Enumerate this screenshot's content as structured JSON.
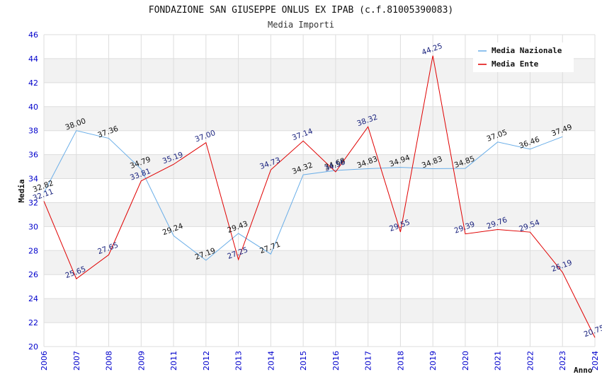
{
  "chart_data": {
    "type": "line",
    "title": "FONDAZIONE SAN GIUSEPPE ONLUS EX IPAB (c.f.81005390083)",
    "subtitle": "Media Importi",
    "xlabel": "Anno",
    "ylabel": "Media",
    "ylim": [
      20,
      46
    ],
    "yticks": [
      "20",
      "22",
      "24",
      "26",
      "28",
      "30",
      "32",
      "34",
      "36",
      "38",
      "40",
      "42",
      "44",
      "46"
    ],
    "categories": [
      "2006",
      "2007",
      "2008",
      "2009",
      "2011",
      "2012",
      "2013",
      "2014",
      "2015",
      "2016",
      "2017",
      "2018",
      "2019",
      "2020",
      "2021",
      "2022",
      "2023",
      "2024"
    ],
    "grid": true,
    "legend_position": "top-right",
    "series": [
      {
        "name": "Media Nazionale",
        "color": "#6aaee8",
        "values": [
          32.82,
          38.0,
          37.36,
          34.79,
          29.24,
          27.19,
          29.43,
          27.71,
          34.32,
          34.68,
          34.83,
          34.94,
          34.83,
          34.85,
          37.05,
          36.46,
          37.49,
          null
        ],
        "labels": [
          "32.82",
          "38.00",
          "37.36",
          "34.79",
          "29.24",
          "27.19",
          "29.43",
          "27.71",
          "34.32",
          "34.68",
          "34.83",
          "34.94",
          "34.83",
          "34.85",
          "37.05",
          "36.46",
          "37.49",
          ""
        ]
      },
      {
        "name": "Media Ente",
        "color": "#e00000",
        "values": [
          32.11,
          25.65,
          27.65,
          33.81,
          35.19,
          37.0,
          27.25,
          34.73,
          37.14,
          34.56,
          38.32,
          29.55,
          44.25,
          29.39,
          29.76,
          29.54,
          26.19,
          20.75
        ],
        "labels": [
          "32.11",
          "25.65",
          "27.65",
          "33.81",
          "35.19",
          "37.00",
          "27.25",
          "34.73",
          "37.14",
          "34.56",
          "38.32",
          "29.55",
          "44.25",
          "29.39",
          "29.76",
          "29.54",
          "26.19",
          "20.75"
        ]
      }
    ]
  }
}
